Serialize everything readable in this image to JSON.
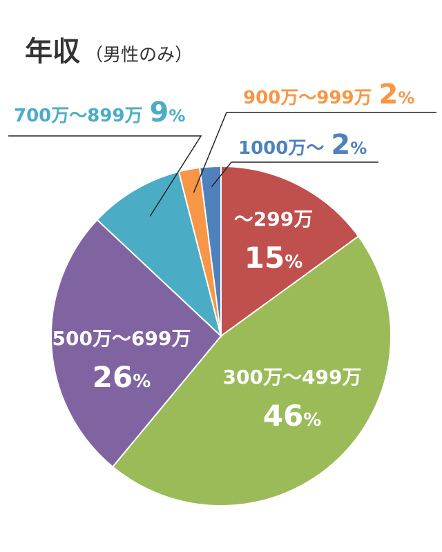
{
  "title": "年収",
  "subtitle": "（男性のみ）",
  "chart_data": {
    "type": "pie",
    "title": "年収",
    "subtitle": "（男性のみ）",
    "start": "12 o'clock",
    "direction": "clockwise",
    "unit_suffix": "%",
    "slices": [
      {
        "label": "～299万",
        "value": 15,
        "color": "#c0504d",
        "label_color": "#ffffff"
      },
      {
        "label": "300万～499万",
        "value": 46,
        "color": "#9bbb59",
        "label_color": "#ffffff"
      },
      {
        "label": "500万～699万",
        "value": 26,
        "color": "#8064a2",
        "label_color": "#ffffff"
      },
      {
        "label": "700万～899万",
        "value": 9,
        "color": "#4bacc6",
        "label_color": "#4bacc6"
      },
      {
        "label": "900万～999万",
        "value": 2,
        "color": "#f79646",
        "label_color": "#f79646"
      },
      {
        "label": "1000万～",
        "value": 2,
        "color": "#4f81bd",
        "label_color": "#4f81bd"
      }
    ]
  }
}
